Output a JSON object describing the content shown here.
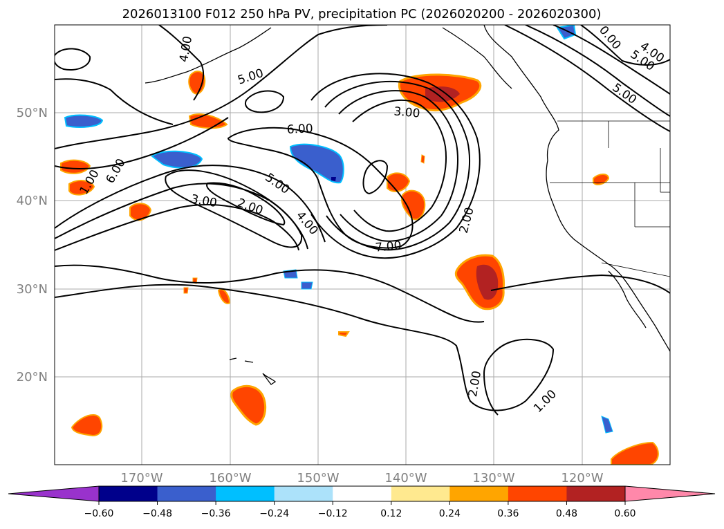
{
  "title": "2026013100 F012 250 hPa PV, precipitation PC (2026020200 - 2026020300)",
  "lat_labels": [
    "50°N",
    "40°N",
    "30°N",
    "20°N"
  ],
  "lon_labels": [
    "170°W",
    "160°W",
    "150°W",
    "140°W",
    "130°W",
    "120°W"
  ],
  "contour_labels": [
    {
      "text": "4.00",
      "a": -80
    },
    {
      "text": "5.00",
      "a": -18
    },
    {
      "text": "3.00",
      "a": 5
    },
    {
      "text": "6.00",
      "a": -3
    },
    {
      "text": "6.00",
      "a": -60
    },
    {
      "text": "1.00",
      "a": -60
    },
    {
      "text": "3.00",
      "a": 10
    },
    {
      "text": "2.00",
      "a": 20
    },
    {
      "text": "5.00",
      "a": 35
    },
    {
      "text": "4.00",
      "a": 50
    },
    {
      "text": "7.00",
      "a": -5
    },
    {
      "text": "2.00",
      "a": -75
    },
    {
      "text": "2.00",
      "a": -80
    },
    {
      "text": "1.00",
      "a": -45
    },
    {
      "text": "5.00",
      "a": 35
    },
    {
      "text": "5.00",
      "a": 35
    },
    {
      "text": "4.00",
      "a": 35
    },
    {
      "text": "0.00",
      "a": 50
    }
  ],
  "colorbar": {
    "ticks": [
      "−0.60",
      "−0.48",
      "−0.36",
      "−0.24",
      "−0.12",
      "0.12",
      "0.24",
      "0.36",
      "0.48",
      "0.60"
    ],
    "colors": {
      "under": "#9932cc",
      "bins": [
        "#00008b",
        "#3a5fcd",
        "#00bfff",
        "#ace2fa",
        "#ffffff",
        "#ffe98f",
        "#ffa500",
        "#ff4500",
        "#b22222"
      ],
      "over": "#ff88aa"
    }
  }
}
